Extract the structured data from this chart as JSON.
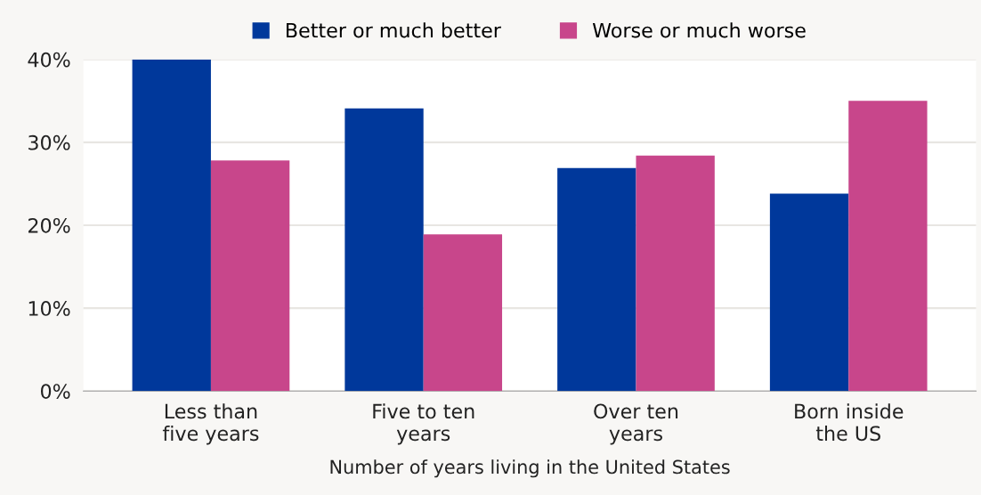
{
  "chart_data": {
    "type": "bar",
    "xlabel": "Number of years living in the United States",
    "categories": [
      "Less than\nfive years",
      "Five to ten\nyears",
      "Over ten\nyears",
      "Born inside\nthe US"
    ],
    "series": [
      {
        "name": "Better or much better",
        "color": "#00389b",
        "values": [
          40,
          34.1,
          26.9,
          23.8
        ]
      },
      {
        "name": "Worse or much worse",
        "color": "#c8468b",
        "values": [
          27.8,
          18.9,
          28.4,
          35.0
        ]
      }
    ],
    "ylim": [
      0,
      40
    ],
    "yticks": [
      {
        "value": 0,
        "label": "0%"
      },
      {
        "value": 10,
        "label": "10%"
      },
      {
        "value": 20,
        "label": "20%"
      },
      {
        "value": 30,
        "label": "30%"
      },
      {
        "value": 40,
        "label": "40%"
      }
    ],
    "grid": "y",
    "legend": "top"
  }
}
